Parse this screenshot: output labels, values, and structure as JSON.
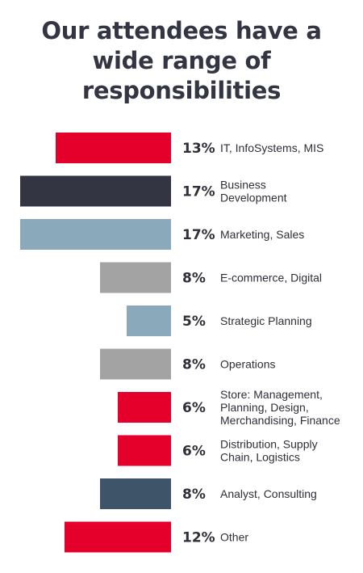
{
  "chart_data": {
    "type": "bar",
    "orientation": "horizontal",
    "title_lines": [
      "Our attendees have a",
      "wide range of",
      "responsibilities"
    ],
    "values": [
      13,
      17,
      17,
      8,
      5,
      8,
      6,
      6,
      8,
      12
    ],
    "value_labels": [
      "13%",
      "17%",
      "17%",
      "8%",
      "5%",
      "8%",
      "6%",
      "6%",
      "8%",
      "12%"
    ],
    "categories": [
      [
        "IT, InfoSystems, MIS"
      ],
      [
        "Business",
        "Development"
      ],
      [
        "Marketing, Sales"
      ],
      [
        "E-commerce, Digital"
      ],
      [
        "Strategic Planning"
      ],
      [
        "Operations"
      ],
      [
        "Store: Management,",
        "Planning, Design,",
        "Merchandising, Finance"
      ],
      [
        "Distribution, Supply",
        "Chain, Logistics"
      ],
      [
        "Analyst, Consulting"
      ],
      [
        "Other"
      ]
    ],
    "bar_colors": [
      "#e4002b",
      "#333642",
      "#8aa9ba",
      "#a3a3a3",
      "#8aa9ba",
      "#a3a3a3",
      "#e4002b",
      "#e4002b",
      "#3e5468",
      "#e4002b"
    ],
    "xlim": [
      0,
      17
    ]
  }
}
